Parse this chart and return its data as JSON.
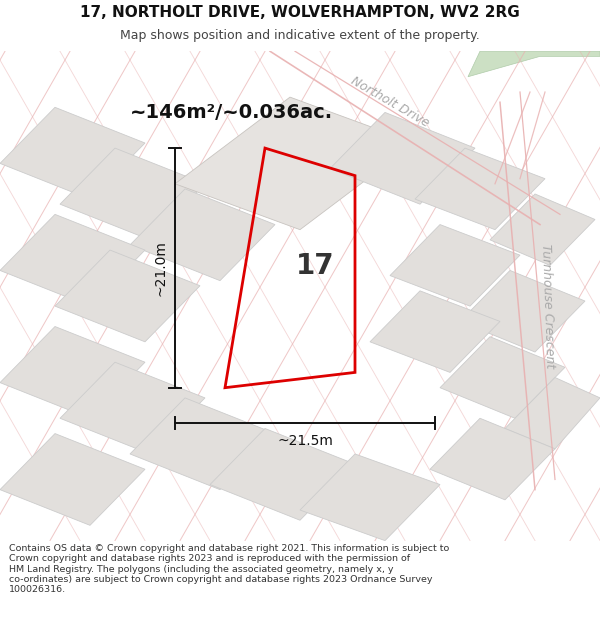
{
  "title": "17, NORTHOLT DRIVE, WOLVERHAMPTON, WV2 2RG",
  "subtitle": "Map shows position and indicative extent of the property.",
  "footer": "Contains OS data © Crown copyright and database right 2021. This information is subject to Crown copyright and database rights 2023 and is reproduced with the permission of HM Land Registry. The polygons (including the associated geometry, namely x, y co-ordinates) are subject to Crown copyright and database rights 2023 Ordnance Survey 100026316.",
  "area_label": "~146m²/~0.036ac.",
  "property_number": "17",
  "dim_width": "~21.5m",
  "dim_height": "~21.0m",
  "title_fontsize": 11,
  "subtitle_fontsize": 9,
  "footer_fontsize": 6.8,
  "area_fontsize": 14,
  "num_fontsize": 20,
  "dim_fontsize": 10,
  "street_fontsize": 9,
  "bg_color": "#f2f0ee",
  "block_color": "#e2dfdc",
  "block_edge": "#cccccc",
  "block_edge_lw": 0.6,
  "road_color": "#e8b0b0",
  "road_lw": 0.9,
  "plot_color": "#dd0000",
  "plot_lw": 2.0,
  "dim_color": "#111111",
  "dim_lw": 1.4,
  "street_color": "#aaaaaa",
  "green_color": "#cce0c4",
  "green_edge": "#b0ccaa",
  "white_road_color": "#f8f6f4",
  "title_color": "#111111",
  "subtitle_color": "#444444",
  "footer_color": "#333333"
}
